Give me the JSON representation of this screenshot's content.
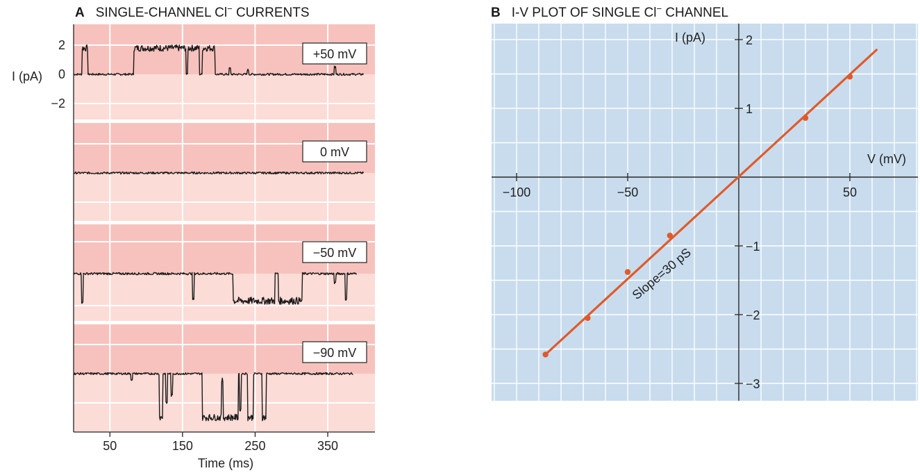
{
  "colors": {
    "panel_a_dark": "#f7c2bd",
    "panel_a_light": "#fbdcd7",
    "panel_b_bg": "#c8dcee",
    "grid": "#ffffff",
    "trace": "#1a1a1a",
    "fit_line": "#e05a2a"
  },
  "chart_data": [
    {
      "type": "line",
      "panel_letter": "A",
      "title": "SINGLE-CHANNEL Cl",
      "title_superscript": "−",
      "title_suffix": " CURRENTS",
      "xlabel": "Time (ms)",
      "ylabel": "I (pA)",
      "x_ticks": [
        "50",
        "150",
        "250",
        "350"
      ],
      "x_tick_values": [
        50,
        150,
        250,
        350
      ],
      "xlim": [
        0,
        415
      ],
      "y_ticks": [
        "2",
        "0",
        "−2"
      ],
      "y_tick_values": [
        2,
        0,
        -2
      ],
      "ylim": [
        -3,
        3
      ],
      "grid": true,
      "traces": [
        {
          "name": "+50 mV",
          "x_end": 400,
          "open_state_pa": 1.8,
          "closed_state_pa": 0,
          "open_intervals_ms": [
            [
              12,
              20
            ],
            [
              83,
              155
            ],
            [
              157,
              173
            ],
            [
              177,
              195
            ]
          ],
          "spikes_ms": [
            [
              215,
              0.4
            ],
            [
              240,
              0.3
            ],
            [
              360,
              0.5
            ]
          ]
        },
        {
          "name": "0 mV",
          "x_end": 400,
          "open_state_pa": 0,
          "closed_state_pa": 0,
          "open_intervals_ms": [],
          "spikes_ms": []
        },
        {
          "name": "−50 mV",
          "x_end": 390,
          "open_state_pa": -1.7,
          "closed_state_pa": 0,
          "open_intervals_ms": [
            [
              220,
              277
            ],
            [
              282,
              315
            ]
          ],
          "spikes_ms": [
            [
              12,
              -1.8
            ],
            [
              165,
              -1.6
            ],
            [
              375,
              -1.6
            ],
            [
              360,
              -0.6
            ]
          ]
        },
        {
          "name": "−90 mV",
          "x_end": 385,
          "open_state_pa": -3.0,
          "closed_state_pa": 0,
          "open_intervals_ms": [
            [
              118,
              123
            ],
            [
              177,
              227
            ],
            [
              240,
              248
            ],
            [
              260,
              265
            ]
          ],
          "spikes_ms": [
            [
              128,
              -2.0
            ],
            [
              135,
              -1.5
            ],
            [
              230,
              -2.5
            ],
            [
              80,
              -0.4
            ],
            [
              205,
              -0.5
            ]
          ]
        }
      ]
    },
    {
      "type": "scatter",
      "panel_letter": "B",
      "title": "I-V PLOT OF SINGLE Cl",
      "title_superscript": "−",
      "title_suffix": " CHANNEL",
      "xlabel": "V (mV)",
      "ylabel": "I (pA)",
      "x_ticks": [
        "−100",
        "−50",
        "50"
      ],
      "x_tick_values": [
        -100,
        -50,
        50
      ],
      "y_ticks": [
        "2",
        "1",
        "−1",
        "−2",
        "−3"
      ],
      "y_tick_values": [
        2,
        1,
        -1,
        -2,
        -3
      ],
      "xlim": [
        -110,
        80
      ],
      "ylim": [
        -3.2,
        2.25
      ],
      "grid": true,
      "points": [
        {
          "x": -87,
          "y": -2.58
        },
        {
          "x": -68,
          "y": -2.05
        },
        {
          "x": -50,
          "y": -1.38
        },
        {
          "x": -31,
          "y": -0.85
        },
        {
          "x": 30,
          "y": 0.86
        },
        {
          "x": 50,
          "y": 1.46
        }
      ],
      "fit_line": {
        "x": [
          -87,
          62
        ],
        "y": [
          -2.58,
          1.85
        ]
      },
      "annotation": "Slope=30 pS"
    }
  ]
}
